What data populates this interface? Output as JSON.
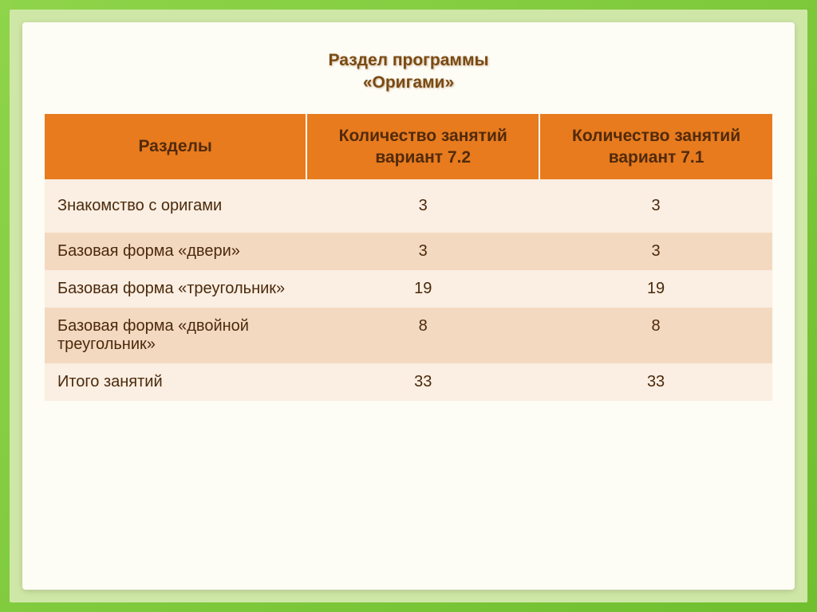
{
  "title": {
    "line1": "Раздел программы",
    "line2": "«Оригами»",
    "color": "#7a4a12",
    "fontsize": 21
  },
  "background": {
    "outer_gradient_start": "#8fd44a",
    "outer_gradient_end": "#6fbf2f",
    "inner_color": "#cfe7a6",
    "card_color": "#fdfcf5"
  },
  "table": {
    "header_bg": "#e77b1e",
    "header_text_color": "#522a0b",
    "header_border_color": "#ffffff",
    "row_alt_bg_light": "#fbeee2",
    "row_alt_bg_dark": "#f4d9c1",
    "cell_text_color": "#4a2a0c",
    "columns": [
      {
        "key": "section",
        "label": "Разделы"
      },
      {
        "key": "v72",
        "label": "Количество занятий вариант 7.2"
      },
      {
        "key": "v71",
        "label": "Количество занятий вариант 7.1"
      }
    ],
    "rows": [
      {
        "section": "Знакомство с оригами",
        "v72": "3",
        "v71": "3"
      },
      {
        "section": "Базовая форма «двери»",
        "v72": "3",
        "v71": "3"
      },
      {
        "section": "Базовая форма «треугольник»",
        "v72": "19",
        "v71": "19"
      },
      {
        "section": "Базовая форма «двойной треугольник»",
        "v72": "8",
        "v71": "8"
      },
      {
        "section": "Итого занятий",
        "v72": "33",
        "v71": "33"
      }
    ],
    "header_fontsize": 21,
    "cell_fontsize": 20
  }
}
